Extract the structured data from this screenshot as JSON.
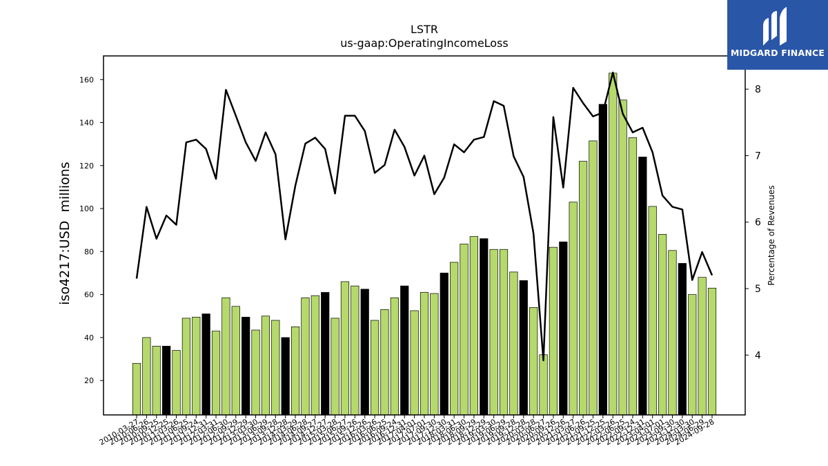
{
  "chart_data": {
    "type": "bar+line",
    "title": "LSTR",
    "subtitle": "us-gaap:OperatingIncomeLoss",
    "ylabel": "iso4217:USD  millions",
    "y2label": "Percentage of Revenues",
    "ylim": [
      4,
      171
    ],
    "y2lim": [
      3.1,
      8.5
    ],
    "yticks": [
      20,
      40,
      60,
      80,
      100,
      120,
      140,
      160
    ],
    "y2ticks": [
      4,
      5,
      6,
      7,
      8
    ],
    "bar_color_default": "#b5d96b",
    "bar_color_highlight": "#000000",
    "line_color": "#000000",
    "categories": [
      "2010-03-27",
      "2010-06-26",
      "2010-09-25",
      "2010-12-25",
      "2011-03-26",
      "2011-06-25",
      "2011-09-24",
      "2011-12-31",
      "2012-03-31",
      "2012-06-30",
      "2012-09-29",
      "2012-12-29",
      "2013-03-30",
      "2013-06-29",
      "2013-09-28",
      "2013-12-28",
      "2014-03-29",
      "2014-06-28",
      "2014-09-27",
      "2014-12-27",
      "2015-03-28",
      "2015-06-27",
      "2015-09-26",
      "2015-12-26",
      "2016-03-26",
      "2016-06-25",
      "2016-09-24",
      "2016-12-31",
      "2017-04-01",
      "2017-07-01",
      "2017-09-30",
      "2017-12-30",
      "2018-03-31",
      "2018-06-30",
      "2018-09-29",
      "2018-12-29",
      "2019-03-30",
      "2019-06-29",
      "2019-09-28",
      "2019-12-28",
      "2020-03-28",
      "2020-06-27",
      "2020-09-26",
      "2020-12-26",
      "2021-03-27",
      "2021-06-26",
      "2021-09-25",
      "2021-12-25",
      "2022-03-26",
      "2022-06-25",
      "2022-09-24",
      "2022-12-31",
      "2023-04-01",
      "2023-07-01",
      "2023-09-30",
      "2023-12-30",
      "2024-03-30",
      "2024-06-29",
      "2024-09-28"
    ],
    "tick_labels": [
      "2010-03-27",
      "2010-06-26",
      "2010-09-25",
      "2010-12-25",
      "2011-03-26",
      "2011-06-25",
      "2011-09-24",
      "2011-12-31",
      "2012-03-31",
      "2012-06-30",
      "2012-09-29",
      "2012-12-29",
      "2013-03-30",
      "2013-06-29",
      "2013-09-28",
      "2013-12-28",
      "2014-03-29",
      "2014-06-28",
      "2014-09-27",
      "2014-12-27",
      "2015-03-28",
      "2015-06-27",
      "2015-09-26",
      "2015-12-26",
      "2016-03-26",
      "2016-06-25",
      "2016-09-24",
      "2016-12-31",
      "2017-04-01",
      "2017-07-01",
      "2017-09-30",
      "2017-12-30",
      "2018-03-31",
      "2018-06-30",
      "2018-09-29",
      "2018-12-29",
      "2019-03-30",
      "2019-06-29",
      "2019-09-28",
      "2019-12-28",
      "2020-03-28",
      "2020-06-27",
      "2020-09-26",
      "2020-12-26",
      "2021-03-27",
      "2021-06-26",
      "2021-09-25",
      "2021-12-25",
      "2022-03-26",
      "2022-06-25",
      "2022-09-24",
      "2022-12-31",
      "2023-04-01",
      "2023-07-01",
      "2023-09-30",
      "2023-12-30",
      "2024-03-30",
      "2024-06-29",
      "2024-09-28"
    ],
    "series": [
      {
        "kind": "bar",
        "values": [
          28,
          40,
          36,
          36,
          34,
          49,
          49.5,
          51,
          43,
          58.5,
          54.5,
          49.5,
          43.5,
          50,
          48,
          40,
          45,
          58.5,
          59.5,
          61,
          49,
          66,
          64,
          62.5,
          48,
          53,
          58.5,
          64,
          52.5,
          61,
          60.5,
          70,
          75,
          83.5,
          87,
          86,
          81,
          81,
          70.5,
          66.5,
          54,
          32,
          82,
          84.5,
          103,
          122,
          131.5,
          148.5,
          163,
          150.5,
          133,
          124,
          101,
          88,
          80.5,
          74.5,
          60,
          68,
          63
        ],
        "highlight": [
          false,
          false,
          false,
          true,
          false,
          false,
          false,
          true,
          false,
          false,
          false,
          true,
          false,
          false,
          false,
          true,
          false,
          false,
          false,
          true,
          false,
          false,
          false,
          true,
          false,
          false,
          false,
          true,
          false,
          false,
          false,
          true,
          false,
          false,
          false,
          true,
          false,
          false,
          false,
          true,
          false,
          false,
          false,
          true,
          false,
          false,
          false,
          true,
          false,
          false,
          false,
          true,
          false,
          false,
          false,
          true,
          false,
          false,
          false
        ]
      },
      {
        "kind": "line",
        "axis": "right",
        "values": [
          5.15,
          6.23,
          5.75,
          6.1,
          5.96,
          7.2,
          7.24,
          7.1,
          6.65,
          7.99,
          7.6,
          7.2,
          6.92,
          7.35,
          7.02,
          5.74,
          6.55,
          7.18,
          7.27,
          7.1,
          6.43,
          7.6,
          7.6,
          7.37,
          6.74,
          6.86,
          7.39,
          7.13,
          6.7,
          7.0,
          6.42,
          6.67,
          7.17,
          7.05,
          7.24,
          7.28,
          7.82,
          7.75,
          6.99,
          6.68,
          5.83,
          3.92,
          7.58,
          6.52,
          8.02,
          7.79,
          7.59,
          7.65,
          8.25,
          7.63,
          7.35,
          7.42,
          7.05,
          6.4,
          6.23,
          6.19,
          5.13,
          5.55,
          5.2
        ]
      }
    ],
    "grid": false,
    "legend": "none"
  },
  "logo": {
    "text": "MIDGARD FINANCE",
    "background": "#2a56a8",
    "icon": "midgard-logo-icon"
  }
}
